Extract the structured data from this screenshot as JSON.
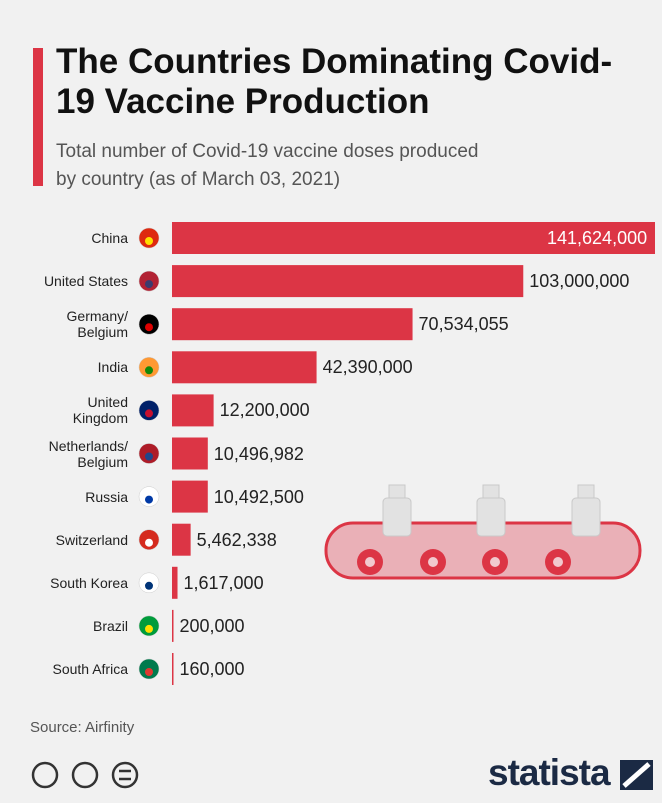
{
  "chart_data": {
    "type": "bar",
    "orientation": "horizontal",
    "title": "The Countries Dominating Covid-19 Vaccine Production",
    "subtitle": "Total number of Covid-19 vaccine doses produced by country (as of March 03, 2021)",
    "categories": [
      "China",
      "United States",
      "Germany/\nBelgium",
      "India",
      "United\nKingdom",
      "Netherlands/\nBelgium",
      "Russia",
      "Switzerland",
      "South Korea",
      "Brazil",
      "South Africa"
    ],
    "values": [
      141624000,
      103000000,
      70534055,
      42390000,
      12200000,
      10496982,
      10492500,
      5462338,
      1617000,
      200000,
      160000
    ],
    "value_labels": [
      "141,624,000",
      "103,000,000",
      "70,534,055",
      "42,390,000",
      "12,200,000",
      "10,496,982",
      "10,492,500",
      "5,462,338",
      "1,617,000",
      "200,000",
      "160,000"
    ],
    "color": "#dc3545",
    "source": "Source: Airfinity",
    "brand": "statista"
  }
}
